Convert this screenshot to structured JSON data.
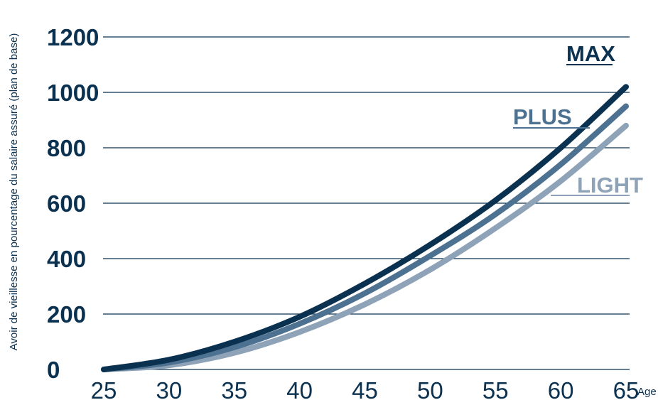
{
  "chart_data": {
    "type": "line",
    "title": "",
    "ylabel": "Avoir de vieillesse en pourcentage du salaire assuré (plan de base)",
    "xlabel": "Age",
    "x_ticks": [
      "25",
      "30",
      "35",
      "40",
      "45",
      "50",
      "55",
      "60",
      "65"
    ],
    "y_ticks": [
      "0",
      "200",
      "400",
      "600",
      "800",
      "1000",
      "1200"
    ],
    "xlim": [
      25,
      65
    ],
    "ylim": [
      0,
      1200
    ],
    "grid": "horizontal",
    "legend": "inline-right",
    "colors": {
      "grid": "#0b3150",
      "text": "#0b3150"
    },
    "series": [
      {
        "name": "MAX",
        "color": "#0b3150",
        "x": [
          25,
          30,
          35,
          40,
          45,
          50,
          55,
          60,
          65
        ],
        "y": [
          0,
          35,
          100,
          190,
          310,
          450,
          610,
          800,
          1020
        ]
      },
      {
        "name": "PLUS",
        "color": "#4d7190",
        "x": [
          25,
          30,
          35,
          40,
          45,
          50,
          55,
          60,
          65
        ],
        "y": [
          0,
          25,
          80,
          165,
          275,
          410,
          560,
          740,
          950
        ]
      },
      {
        "name": "LIGHT",
        "color": "#8ea3b8",
        "x": [
          25,
          30,
          35,
          40,
          45,
          50,
          55,
          60,
          65
        ],
        "y": [
          0,
          15,
          60,
          135,
          235,
          360,
          510,
          680,
          880
        ]
      }
    ]
  }
}
